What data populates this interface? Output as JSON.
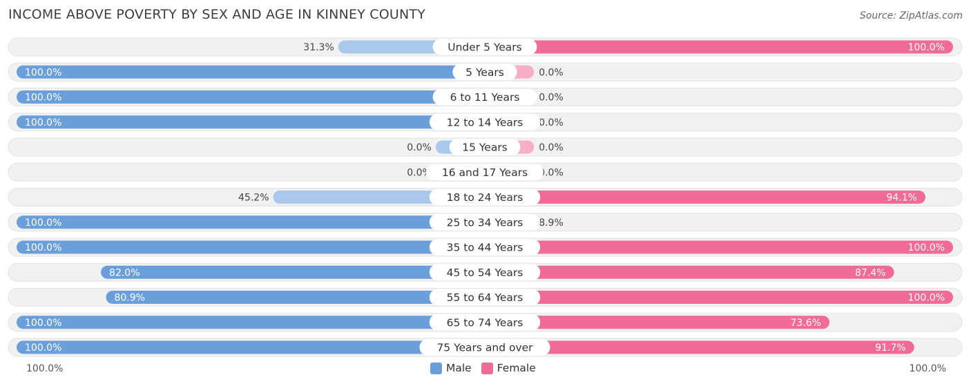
{
  "header": {
    "title": "INCOME ABOVE POVERTY BY SEX AND AGE IN KINNEY COUNTY",
    "source": "Source: ZipAtlas.com"
  },
  "colors": {
    "male": "#6a9fdc",
    "male_light": "#a9c8ec",
    "female": "#f06b96",
    "female_light": "#f7afc6",
    "track": "#f1f1f1"
  },
  "legend": {
    "male": "Male",
    "female": "Female"
  },
  "axis": {
    "left_label": "100.0%",
    "right_label": "100.0%"
  },
  "chart_data": {
    "type": "bar",
    "orientation": "horizontal-diverging",
    "title": "INCOME ABOVE POVERTY BY SEX AND AGE IN KINNEY COUNTY",
    "xlim": [
      -100,
      100
    ],
    "categories": [
      "Under 5 Years",
      "5 Years",
      "6 to 11 Years",
      "12 to 14 Years",
      "15 Years",
      "16 and 17 Years",
      "18 to 24 Years",
      "25 to 34 Years",
      "35 to 44 Years",
      "45 to 54 Years",
      "55 to 64 Years",
      "65 to 74 Years",
      "75 Years and over"
    ],
    "series": [
      {
        "name": "Male",
        "values": [
          31.3,
          100.0,
          100.0,
          100.0,
          0.0,
          0.0,
          45.2,
          100.0,
          100.0,
          82.0,
          80.9,
          100.0,
          100.0
        ],
        "labels": [
          "31.3%",
          "100.0%",
          "100.0%",
          "100.0%",
          "0.0%",
          "0.0%",
          "45.2%",
          "100.0%",
          "100.0%",
          "82.0%",
          "80.9%",
          "100.0%",
          "100.0%"
        ]
      },
      {
        "name": "Female",
        "values": [
          100.0,
          0.0,
          0.0,
          0.0,
          0.0,
          0.0,
          94.1,
          8.9,
          100.0,
          87.4,
          100.0,
          73.6,
          91.7
        ],
        "labels": [
          "100.0%",
          "0.0%",
          "0.0%",
          "0.0%",
          "0.0%",
          "0.0%",
          "94.1%",
          "8.9%",
          "100.0%",
          "87.4%",
          "100.0%",
          "73.6%",
          "91.7%"
        ]
      }
    ]
  }
}
